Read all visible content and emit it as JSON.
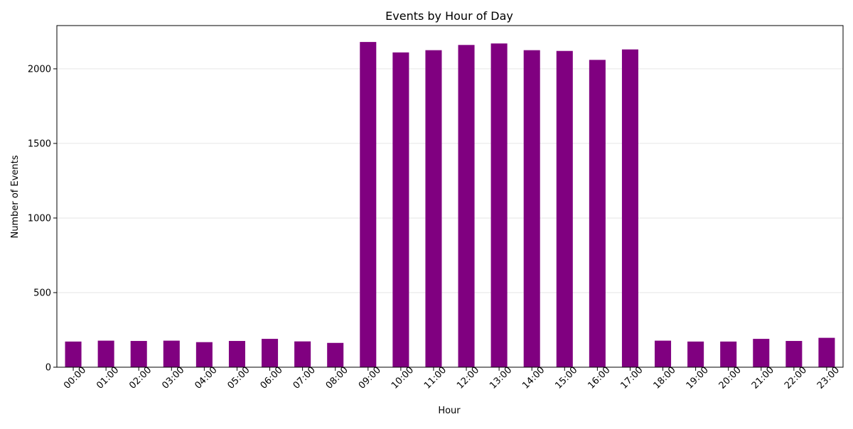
{
  "chart_data": {
    "type": "bar",
    "title": "Events by Hour of Day",
    "xlabel": "Hour",
    "ylabel": "Number of Events",
    "categories": [
      "00:00",
      "01:00",
      "02:00",
      "03:00",
      "04:00",
      "05:00",
      "06:00",
      "07:00",
      "08:00",
      "09:00",
      "10:00",
      "11:00",
      "12:00",
      "13:00",
      "14:00",
      "15:00",
      "16:00",
      "17:00",
      "18:00",
      "19:00",
      "20:00",
      "21:00",
      "22:00",
      "23:00"
    ],
    "values": [
      172,
      178,
      176,
      178,
      168,
      176,
      190,
      173,
      163,
      2180,
      2110,
      2125,
      2160,
      2170,
      2125,
      2120,
      2060,
      2130,
      178,
      172,
      172,
      190,
      176,
      197
    ],
    "ylim": [
      0,
      2290
    ],
    "yticks": [
      0,
      500,
      1000,
      1500,
      2000
    ],
    "grid": "horizontal",
    "bar_color": "#800080",
    "legend": "none"
  }
}
